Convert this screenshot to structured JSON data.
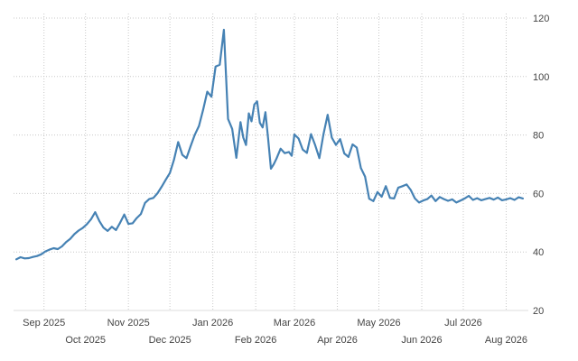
{
  "chart_data": {
    "type": "line",
    "title": "",
    "xlabel": "",
    "ylabel": "",
    "ylim": [
      20,
      120
    ],
    "xlim": [
      "2025-08-10",
      "2026-08-17"
    ],
    "y_ticks": [
      20,
      40,
      60,
      80,
      100,
      120
    ],
    "x_ticks": [
      {
        "date": "2025-09-01",
        "label": "Sep 2025"
      },
      {
        "date": "2025-10-01",
        "label": "Oct 2025"
      },
      {
        "date": "2025-11-01",
        "label": "Nov 2025"
      },
      {
        "date": "2025-12-01",
        "label": "Dec 2025"
      },
      {
        "date": "2026-01-01",
        "label": "Jan 2026"
      },
      {
        "date": "2026-02-01",
        "label": "Feb 2026"
      },
      {
        "date": "2026-03-01",
        "label": "Mar 2026"
      },
      {
        "date": "2026-04-01",
        "label": "Apr 2026"
      },
      {
        "date": "2026-05-01",
        "label": "May 2026"
      },
      {
        "date": "2026-06-01",
        "label": "Jun 2026"
      },
      {
        "date": "2026-07-01",
        "label": "Jul 2026"
      },
      {
        "date": "2026-08-01",
        "label": "Aug 2026"
      }
    ],
    "grid": true,
    "legend": "none",
    "colors": {
      "line": "#4682b4",
      "grid": "#c8c8c8",
      "text": "#444444"
    },
    "series": [
      {
        "x": [
          "2025-08-12",
          "2025-08-15",
          "2025-08-18",
          "2025-08-21",
          "2025-08-24",
          "2025-08-27",
          "2025-08-30",
          "2025-09-02",
          "2025-09-05",
          "2025-09-08",
          "2025-09-11",
          "2025-09-14",
          "2025-09-17",
          "2025-09-20",
          "2025-09-23",
          "2025-09-26",
          "2025-09-29",
          "2025-10-02",
          "2025-10-05",
          "2025-10-08",
          "2025-10-11",
          "2025-10-14",
          "2025-10-17",
          "2025-10-20",
          "2025-10-23",
          "2025-10-26",
          "2025-10-29",
          "2025-11-01",
          "2025-11-04",
          "2025-11-07",
          "2025-11-10",
          "2025-11-13",
          "2025-11-16",
          "2025-11-19",
          "2025-11-22",
          "2025-11-25",
          "2025-11-28",
          "2025-12-01",
          "2025-12-04",
          "2025-12-07",
          "2025-12-10",
          "2025-12-13",
          "2025-12-16",
          "2025-12-19",
          "2025-12-22",
          "2025-12-25",
          "2025-12-28",
          "2025-12-31",
          "2026-01-03",
          "2026-01-06",
          "2026-01-09",
          "2026-01-12",
          "2026-01-15",
          "2026-01-18",
          "2026-01-21",
          "2026-01-23",
          "2026-01-25",
          "2026-01-27",
          "2026-01-29",
          "2026-01-31",
          "2026-02-02",
          "2026-02-04",
          "2026-02-06",
          "2026-02-08",
          "2026-02-10",
          "2026-02-12",
          "2026-02-14",
          "2026-02-16",
          "2026-02-19",
          "2026-02-22",
          "2026-02-25",
          "2026-02-27",
          "2026-03-01",
          "2026-03-04",
          "2026-03-07",
          "2026-03-10",
          "2026-03-13",
          "2026-03-16",
          "2026-03-19",
          "2026-03-22",
          "2026-03-25",
          "2026-03-28",
          "2026-03-31",
          "2026-04-03",
          "2026-04-06",
          "2026-04-09",
          "2026-04-12",
          "2026-04-15",
          "2026-04-18",
          "2026-04-21",
          "2026-04-24",
          "2026-04-27",
          "2026-04-30",
          "2026-05-03",
          "2026-05-06",
          "2026-05-09",
          "2026-05-12",
          "2026-05-15",
          "2026-05-18",
          "2026-05-21",
          "2026-05-24",
          "2026-05-27",
          "2026-05-30",
          "2026-06-02",
          "2026-06-05",
          "2026-06-08",
          "2026-06-11",
          "2026-06-14",
          "2026-06-17",
          "2026-06-20",
          "2026-06-23",
          "2026-06-26",
          "2026-06-29",
          "2026-07-02",
          "2026-07-05",
          "2026-07-08",
          "2026-07-11",
          "2026-07-14",
          "2026-07-17",
          "2026-07-20",
          "2026-07-23",
          "2026-07-26",
          "2026-07-29",
          "2026-08-01",
          "2026-08-04",
          "2026-08-07",
          "2026-08-10",
          "2026-08-13"
        ],
        "values": [
          37.5,
          38.2,
          37.8,
          37.9,
          38.3,
          38.6,
          39.2,
          40.2,
          40.8,
          41.3,
          41.0,
          41.9,
          43.4,
          44.5,
          46.1,
          47.3,
          48.2,
          49.5,
          51.2,
          53.6,
          50.6,
          48.3,
          47.2,
          48.6,
          47.5,
          50.0,
          52.8,
          49.6,
          49.8,
          51.6,
          53.0,
          56.8,
          58.1,
          58.5,
          60.1,
          62.3,
          64.7,
          67.0,
          71.6,
          77.6,
          73.2,
          72.1,
          76.2,
          80.1,
          83.1,
          88.6,
          94.8,
          93.1,
          103.4,
          104.0,
          116.0,
          85.5,
          82.1,
          72.2,
          84.4,
          79.1,
          76.6,
          87.4,
          84.7,
          90.4,
          91.5,
          84.2,
          82.6,
          87.8,
          78.7,
          68.5,
          70.0,
          71.9,
          75.3,
          73.8,
          74.2,
          72.9,
          80.2,
          78.8,
          75.0,
          73.9,
          80.3,
          76.5,
          72.1,
          80.3,
          86.9,
          79.1,
          76.6,
          78.6,
          73.7,
          72.5,
          76.8,
          75.7,
          68.7,
          65.8,
          58.2,
          57.4,
          60.5,
          58.9,
          62.5,
          58.5,
          58.3,
          62.0,
          62.5,
          63.1,
          61.2,
          58.3,
          56.9,
          57.6,
          58.1,
          59.3,
          57.4,
          58.8,
          58.1,
          57.5,
          58.0,
          56.9,
          57.6,
          58.3,
          59.2,
          57.8,
          58.4,
          57.7,
          58.1,
          58.5,
          57.9,
          58.6,
          57.7,
          58.0,
          58.4,
          57.8,
          58.7,
          58.3
        ]
      }
    ]
  }
}
